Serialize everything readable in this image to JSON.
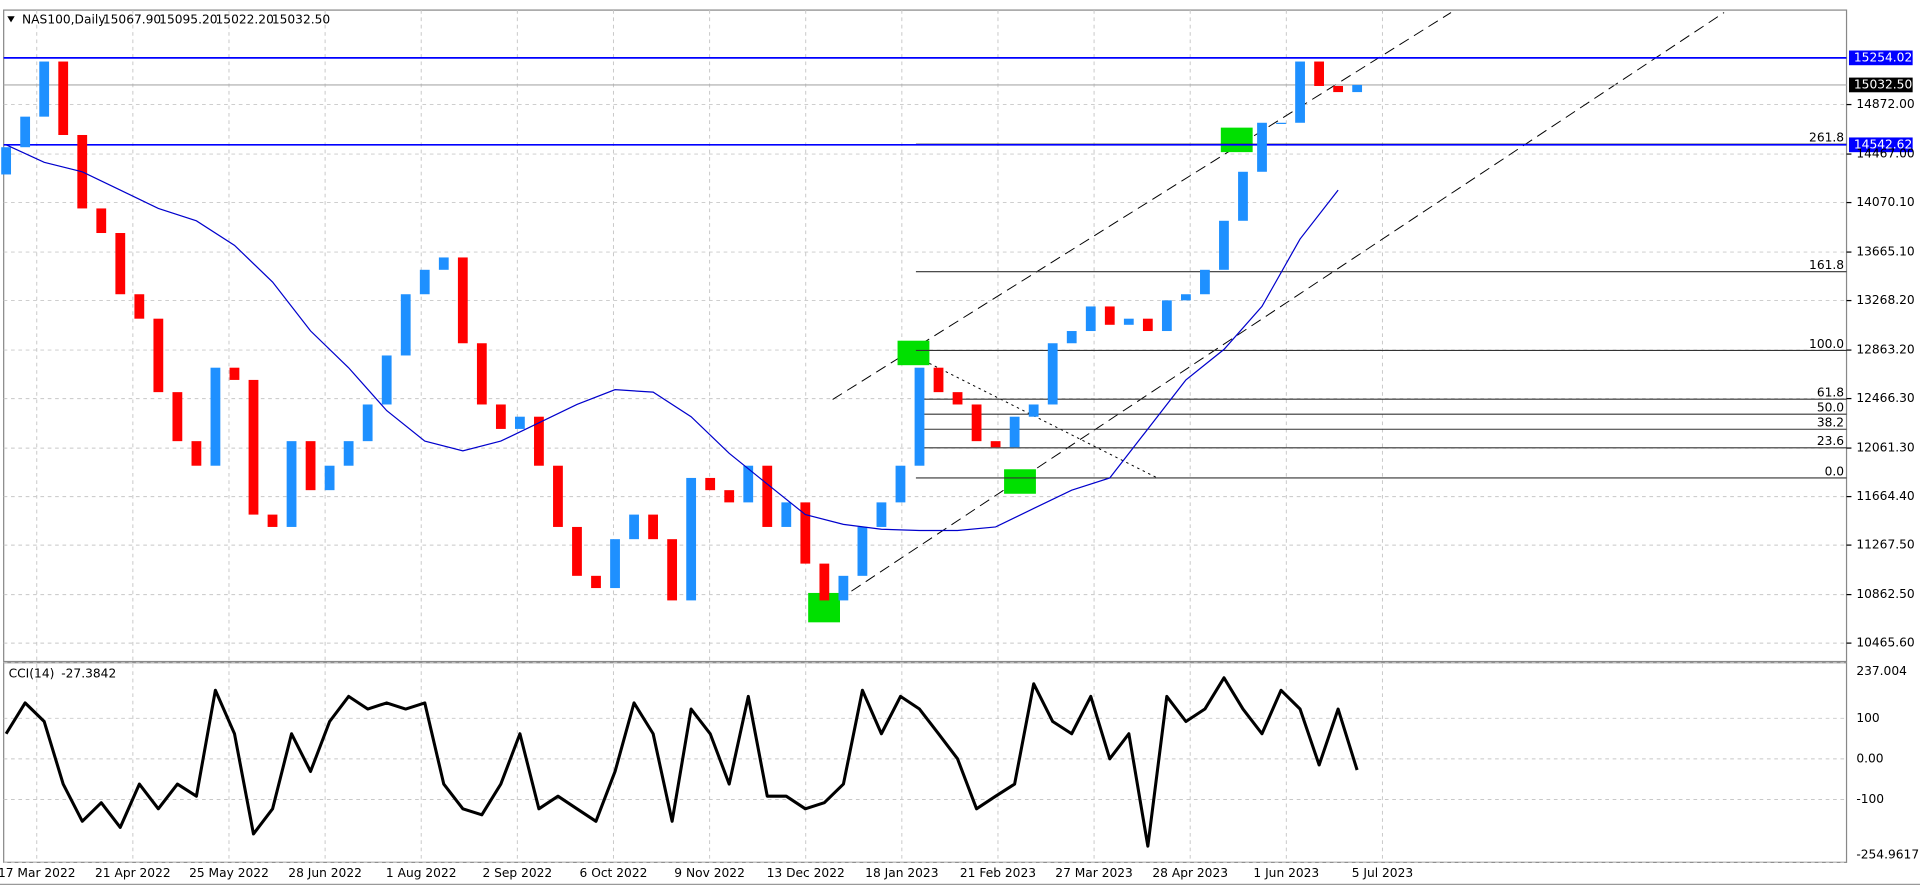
{
  "chart_data": {
    "type": "candlestick",
    "title": "NAS100,Daily",
    "ohlc_header": [
      {
        "value": 15067.9,
        "label": "15067.90"
      },
      {
        "value": 15095.2,
        "label": "15095.20"
      },
      {
        "value": 15022.2,
        "label": "15022.20"
      },
      {
        "value": 15032.5,
        "label": "15032.50"
      }
    ],
    "x_labels": [
      "17 Mar 2022",
      "21 Apr 2022",
      "25 May 2022",
      "28 Jun 2022",
      "1 Aug 2022",
      "2 Sep 2022",
      "6 Oct 2022",
      "9 Nov 2022",
      "13 Dec 2022",
      "18 Jan 2023",
      "21 Feb 2023",
      "27 Mar 2023",
      "28 Apr 2023",
      "1 Jun 2023",
      "5 Jul 2023"
    ],
    "up_color": "#1e90ff",
    "down_color": "#ff0000",
    "open": [
      14300,
      14523,
      14773,
      15224,
      14623,
      14022,
      13821,
      13320,
      13120,
      12519,
      12118,
      11917,
      12719,
      12619,
      11517,
      11416,
      12118,
      11717,
      11917,
      12118,
      12418,
      12819,
      13320,
      13520,
      13621,
      12919,
      12418,
      12218,
      12318,
      11917,
      11416,
      11016,
      10916,
      11316,
      11517,
      11316,
      10815,
      11817,
      11717,
      11617,
      11917,
      11416,
      11617,
      11116,
      10815,
      11016,
      11416,
      11617,
      11917,
      12719,
      12519,
      12418,
      12118,
      12068,
      12318,
      12418,
      12919,
      13019,
      13220,
      13070,
      13120,
      13019,
      13270,
      13320,
      13520,
      13921,
      14322,
      14723,
      14723,
      15224,
      15024,
      14974
    ],
    "close": [
      14523,
      14773,
      15224,
      14623,
      14022,
      13821,
      13320,
      13120,
      12519,
      12118,
      11917,
      12719,
      12619,
      11517,
      11416,
      12118,
      11717,
      11917,
      12118,
      12418,
      12819,
      13320,
      13520,
      13621,
      12919,
      12418,
      12218,
      12318,
      11917,
      11416,
      11016,
      10916,
      11316,
      11517,
      11316,
      10815,
      11817,
      11717,
      11617,
      11917,
      11416,
      11617,
      11116,
      10815,
      11016,
      11416,
      11617,
      11917,
      12719,
      12519,
      12418,
      12118,
      12068,
      12318,
      12418,
      12919,
      13019,
      13220,
      13070,
      13120,
      13019,
      13270,
      13320,
      13520,
      13921,
      14322,
      14723,
      14723,
      15224,
      15024,
      14974,
      15032.5
    ],
    "ma_color": "#0000cc",
    "ma": [
      14543,
      14400,
      14322,
      14172,
      14022,
      13921,
      13720,
      13420,
      13020,
      12719,
      12368,
      12118,
      12038,
      12118,
      12268,
      12418,
      12539,
      12519,
      12318,
      12018,
      11767,
      11517,
      11437,
      11397,
      11387,
      11387,
      11416,
      11567,
      11717,
      11817,
      12218,
      12619,
      12869,
      13220,
      13771,
      14172
    ],
    "ylim": [
      10315,
      15645
    ],
    "yticks": [
      {
        "value": 14872,
        "label": "14872.00"
      },
      {
        "value": 14467,
        "label": "14467.00"
      },
      {
        "value": 14070.1,
        "label": "14070.10"
      },
      {
        "value": 13665.1,
        "label": "13665.10"
      },
      {
        "value": 13268.2,
        "label": "13268.20"
      },
      {
        "value": 12863.2,
        "label": "12863.20"
      },
      {
        "value": 12466.3,
        "label": "12466.30"
      },
      {
        "value": 12061.3,
        "label": "12061.30"
      },
      {
        "value": 11664.4,
        "label": "11664.40"
      },
      {
        "value": 11267.5,
        "label": "11267.50"
      },
      {
        "value": 10862.5,
        "label": "10862.50"
      },
      {
        "value": 10465.6,
        "label": "10465.60"
      }
    ],
    "hlines": [
      {
        "value": 15254.02,
        "color": "#0000ff"
      },
      {
        "value": 14542.62,
        "color": "#0000ff"
      },
      {
        "value": {
          "value": 15032.5,
          "label": "15032.50"
        },
        "color": "#000000"
      }
    ],
    "fib": {
      "low": 11817,
      "high": 12860,
      "levels": [
        {
          "value": 261.8,
          "label": "261.8"
        },
        {
          "value": 161.8,
          "label": "161.8"
        },
        {
          "value": 100,
          "label": "100.0"
        },
        {
          "value": 61.8,
          "label": "61.8"
        },
        {
          "value": 50,
          "label": "50.0"
        },
        {
          "value": 38.2,
          "label": "38.2"
        },
        {
          "value": 23.6,
          "label": "23.6"
        },
        {
          "value": 0,
          "label": "0.0"
        }
      ]
    },
    "cci": {
      "name": "CCI(14)",
      "last": -27.3842,
      "color": "#000000",
      "values": [
        62,
        138,
        92,
        -62,
        -154,
        -108,
        -169,
        -62,
        -123,
        -62,
        -92,
        169,
        62,
        -185,
        -123,
        62,
        -31,
        92,
        154,
        123,
        138,
        123,
        138,
        -62,
        -123,
        -138,
        -62,
        62,
        -123,
        -92,
        -123,
        -154,
        -31,
        138,
        62,
        -154,
        123,
        62,
        -62,
        154,
        -92,
        -92,
        -123,
        -108,
        -62,
        169,
        62,
        154,
        123,
        62,
        0,
        -123,
        -92,
        -62,
        185,
        92,
        62,
        154,
        0,
        62,
        -215,
        154,
        92,
        123,
        200,
        123,
        62,
        169,
        123,
        -15,
        123,
        -27.3842
      ],
      "ylim": [
        -254.9617,
        237.004
      ],
      "yticks": [
        237.004,
        100,
        {
          "value": 0,
          "label": "0.00"
        },
        -100,
        -254.9617
      ]
    }
  }
}
